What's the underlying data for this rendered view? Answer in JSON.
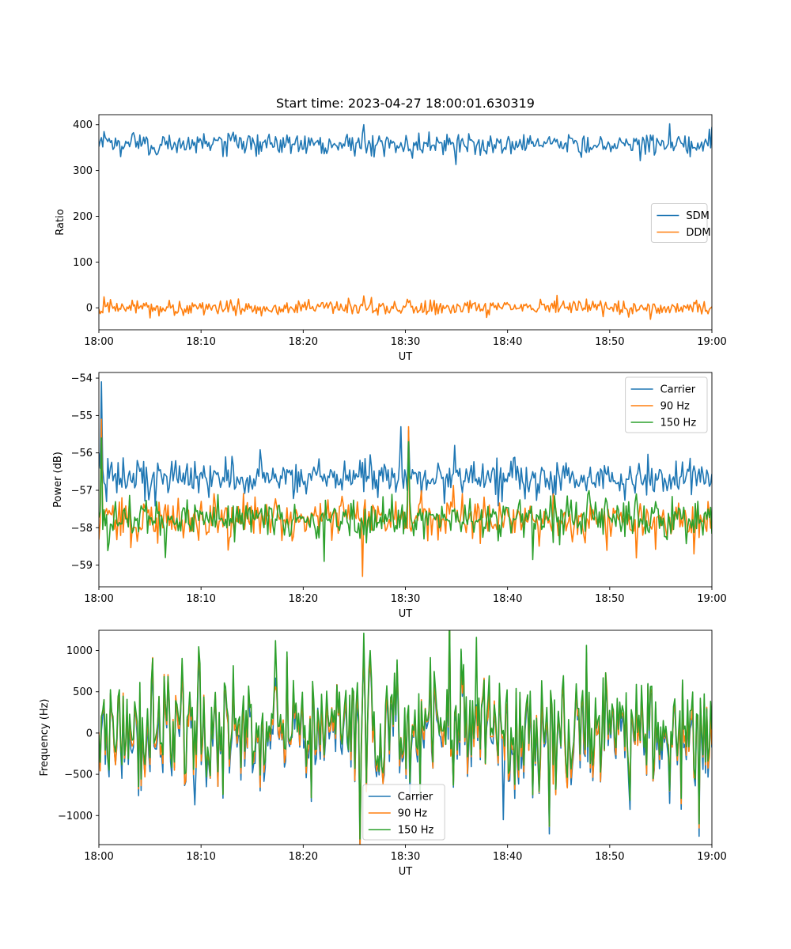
{
  "figure": {
    "title": "Start time: 2023-04-27 18:00:01.630319"
  },
  "colors": {
    "blue": "#1f77b4",
    "orange": "#ff7f0e",
    "green": "#2ca02c"
  },
  "chart_data": [
    {
      "type": "line",
      "title": "Start time: 2023-04-27 18:00:01.630319",
      "xlabel": "UT",
      "ylabel": "Ratio",
      "x_ticks": [
        "18:00",
        "18:10",
        "18:20",
        "18:30",
        "18:40",
        "18:50",
        "19:00"
      ],
      "x_range_minutes": [
        0,
        60
      ],
      "ylim": [
        -48,
        422
      ],
      "y_ticks": [
        0,
        100,
        200,
        300,
        400
      ],
      "legend_position": "center-right",
      "grid": false,
      "series": [
        {
          "name": "SDM",
          "color": "#1f77b4",
          "mean": 358,
          "amplitude": 12,
          "peaks": [
            {
              "x": 0.5,
              "y": 385
            },
            {
              "x": 25.9,
              "y": 400
            },
            {
              "x": 35.0,
              "y": 313
            },
            {
              "x": 55.9,
              "y": 402
            },
            {
              "x": 60.0,
              "y": 395
            }
          ]
        },
        {
          "name": "DDM",
          "color": "#ff7f0e",
          "mean": 0,
          "amplitude": 8,
          "peaks": [
            {
              "x": 0.5,
              "y": 24
            },
            {
              "x": 5.0,
              "y": -22
            },
            {
              "x": 25.9,
              "y": 26
            },
            {
              "x": 44.8,
              "y": 27
            },
            {
              "x": 54.0,
              "y": -25
            }
          ]
        }
      ]
    },
    {
      "type": "line",
      "xlabel": "UT",
      "ylabel": "Power (dB)",
      "x_ticks": [
        "18:00",
        "18:10",
        "18:20",
        "18:30",
        "18:40",
        "18:50",
        "19:00"
      ],
      "x_range_minutes": [
        0,
        60
      ],
      "ylim": [
        -59.58,
        -53.85
      ],
      "y_ticks": [
        -54,
        -55,
        -56,
        -57,
        -58,
        -59
      ],
      "legend_position": "top-right",
      "grid": false,
      "series": [
        {
          "name": "Carrier",
          "color": "#1f77b4",
          "mean": -56.65,
          "amplitude": 0.25,
          "peaks": [
            {
              "x": 0.2,
              "y": -54.1
            },
            {
              "x": 0.8,
              "y": -57.3
            },
            {
              "x": 29.5,
              "y": -55.3
            },
            {
              "x": 30.3,
              "y": -55.4
            },
            {
              "x": 34.8,
              "y": -55.8
            }
          ]
        },
        {
          "name": "90 Hz",
          "color": "#ff7f0e",
          "mean": -57.75,
          "amplitude": 0.28,
          "peaks": [
            {
              "x": 0.2,
              "y": -55.1
            },
            {
              "x": 25.8,
              "y": -59.3
            },
            {
              "x": 30.3,
              "y": -55.3
            },
            {
              "x": 58.2,
              "y": -58.7
            }
          ]
        },
        {
          "name": "150 Hz",
          "color": "#2ca02c",
          "mean": -57.75,
          "amplitude": 0.28,
          "peaks": [
            {
              "x": 0.2,
              "y": -55.6
            },
            {
              "x": 6.5,
              "y": -58.8
            },
            {
              "x": 22.0,
              "y": -58.9
            },
            {
              "x": 30.3,
              "y": -55.7
            },
            {
              "x": 42.5,
              "y": -58.85
            }
          ]
        }
      ]
    },
    {
      "type": "line",
      "xlabel": "UT",
      "ylabel": "Frequency (Hz)",
      "x_ticks": [
        "18:00",
        "18:10",
        "18:20",
        "18:30",
        "18:40",
        "18:50",
        "19:00"
      ],
      "x_range_minutes": [
        0,
        60
      ],
      "ylim": [
        -1352,
        1245
      ],
      "y_ticks": [
        1000,
        500,
        0,
        -500,
        -1000
      ],
      "legend_position": "bottom-center",
      "grid": false,
      "series": [
        {
          "name": "Carrier",
          "color": "#1f77b4",
          "mean": -40,
          "amplitude": 400,
          "peaks": [
            {
              "x": 9.4,
              "y": -870
            },
            {
              "x": 39.6,
              "y": -1050
            },
            {
              "x": 58.8,
              "y": -1250
            }
          ]
        },
        {
          "name": "90 Hz",
          "color": "#ff7f0e",
          "mean": 20,
          "amplitude": 400,
          "peaks": [
            {
              "x": 17.3,
              "y": 560
            },
            {
              "x": 58.8,
              "y": -1150
            }
          ]
        },
        {
          "name": "150 Hz",
          "color": "#2ca02c",
          "mean": 80,
          "amplitude": 400,
          "peaks": [
            {
              "x": 17.3,
              "y": 1120
            },
            {
              "x": 25.9,
              "y": 1210
            },
            {
              "x": 36.9,
              "y": 1160
            },
            {
              "x": 58.8,
              "y": -1100
            }
          ]
        }
      ]
    }
  ]
}
